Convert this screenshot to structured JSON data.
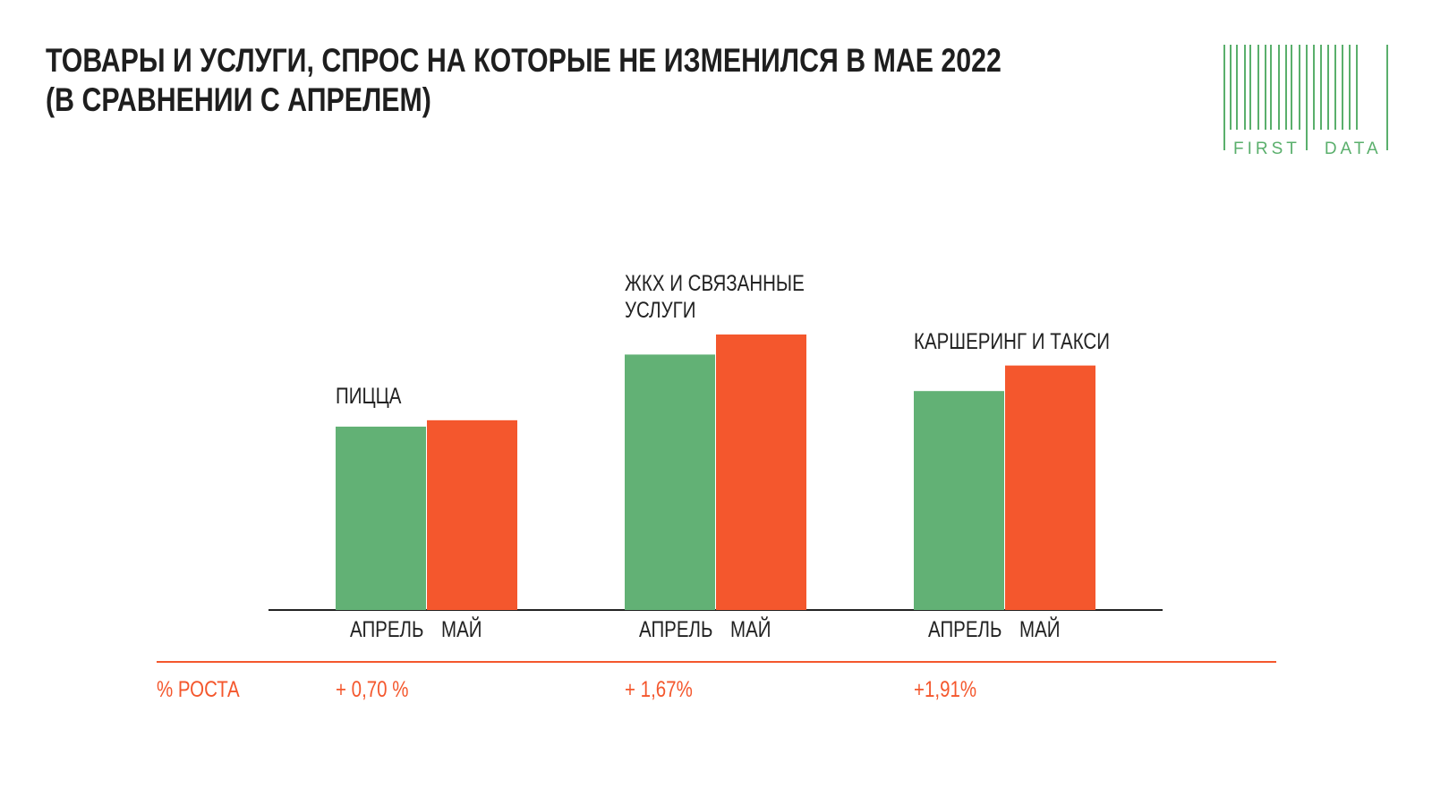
{
  "header": {
    "title": "ТОВАРЫ И УСЛУГИ, СПРОС НА КОТОРЫЕ НЕ ИЗМЕНИЛСЯ В МАЕ 2022\n(В СРАВНЕНИИ С АПРЕЛЕМ)",
    "logo": "FIRST DATA"
  },
  "chart_data": {
    "type": "bar",
    "categories": [
      "ПИЦЦА",
      "ЖКХ И СВЯЗАННЫЕ\nУСЛУГИ",
      "КАРШЕРИНГ И ТАКСИ"
    ],
    "series": [
      {
        "name": "АПРЕЛЬ",
        "color": "#62b175",
        "values": [
          201,
          280,
          240
        ]
      },
      {
        "name": "МАЙ",
        "color": "#f4572d",
        "values": [
          208,
          302,
          268
        ]
      }
    ],
    "ylim": [
      0,
      320
    ],
    "growth": {
      "label": "% РОСТА",
      "values": [
        0.7,
        1.67,
        1.91
      ],
      "value_labels": [
        "+ 0,70 %",
        "+ 1,67%",
        "+1,91%"
      ],
      "color": "#f4572d"
    }
  }
}
